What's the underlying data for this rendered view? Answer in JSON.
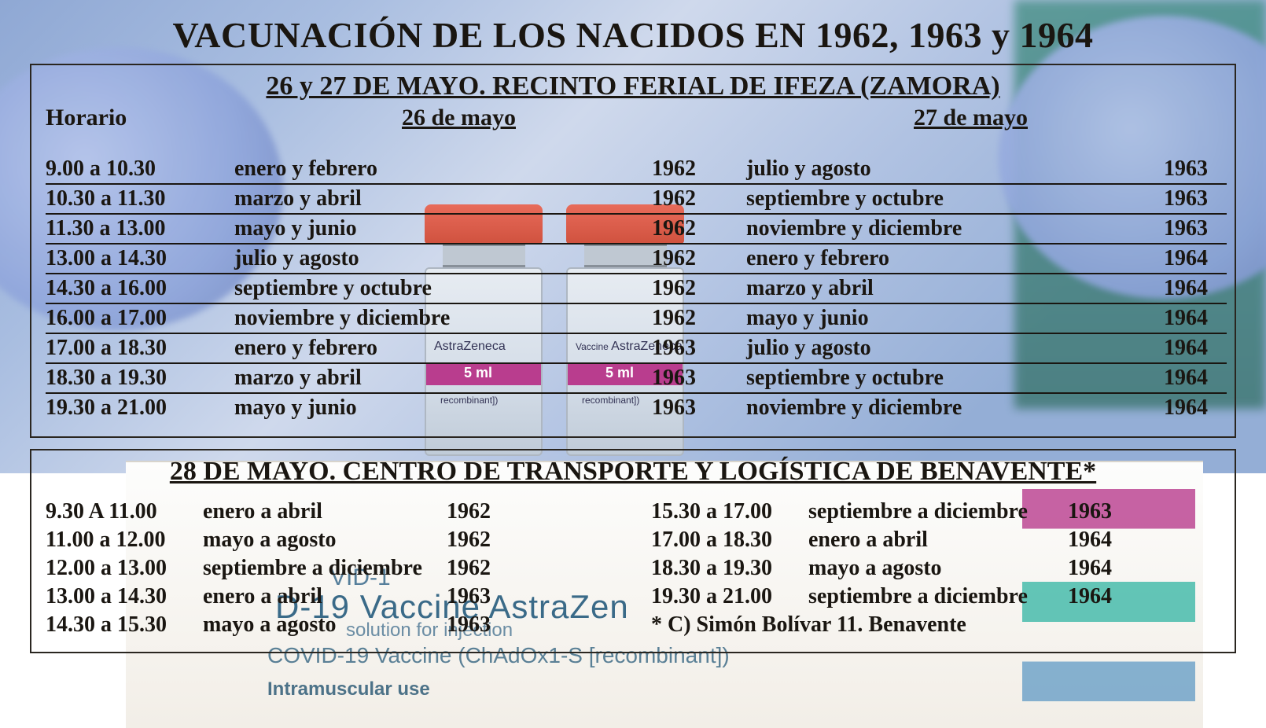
{
  "title": "VACUNACIÓN DE LOS NACIDOS EN 1962, 1963 y 1964",
  "panelA": {
    "subtitle": "26 y 27 DE MAYO. RECINTO FERIAL DE IFEZA (ZAMORA)",
    "headers": {
      "h0": "Horario",
      "h1": "26 de mayo",
      "h2": "27 de mayo"
    },
    "rows": [
      {
        "time": "9.00 a 10.30",
        "d1m": "enero y febrero",
        "d1y": "1962",
        "d2m": "julio y agosto",
        "d2y": "1963"
      },
      {
        "time": "10.30 a 11.30",
        "d1m": "marzo y abril",
        "d1y": "1962",
        "d2m": "septiembre y octubre",
        "d2y": "1963"
      },
      {
        "time": "11.30 a 13.00",
        "d1m": "mayo y junio",
        "d1y": "1962",
        "d2m": "noviembre y diciembre",
        "d2y": "1963"
      },
      {
        "time": "13.00 a 14.30",
        "d1m": "julio y agosto",
        "d1y": "1962",
        "d2m": "enero y febrero",
        "d2y": "1964"
      },
      {
        "time": "14.30 a 16.00",
        "d1m": "septiembre y octubre",
        "d1y": "1962",
        "d2m": "marzo y abril",
        "d2y": "1964"
      },
      {
        "time": "16.00 a 17.00",
        "d1m": "noviembre y diciembre",
        "d1y": "1962",
        "d2m": "mayo y junio",
        "d2y": "1964"
      },
      {
        "time": "17.00 a 18.30",
        "d1m": "enero y febrero",
        "d1y": "1963",
        "d2m": "julio y agosto",
        "d2y": "1964"
      },
      {
        "time": "18.30 a 19.30",
        "d1m": "marzo y abril",
        "d1y": "1963",
        "d2m": "septiembre y octubre",
        "d2y": "1964"
      },
      {
        "time": "19.30 a 21.00",
        "d1m": "mayo y junio",
        "d1y": "1963",
        "d2m": "noviembre y diciembre",
        "d2y": "1964"
      }
    ]
  },
  "panelB": {
    "subtitle": "28 DE MAYO. CENTRO DE TRANSPORTE Y LOGÍSTICA DE BENAVENTE*",
    "left": [
      {
        "time": "9.30 A 11.00",
        "mon": "enero a abril",
        "yr": "1962"
      },
      {
        "time": "11.00 a 12.00",
        "mon": "mayo a agosto",
        "yr": "1962"
      },
      {
        "time": "12.00 a 13.00",
        "mon": "septiembre a diciembre",
        "yr": "1962"
      },
      {
        "time": "13.00 a 14.30",
        "mon": "enero a abril",
        "yr": "1963"
      },
      {
        "time": "14.30 a 15.30",
        "mon": "mayo a agosto",
        "yr": "1963"
      }
    ],
    "right": [
      {
        "time": "15.30 a 17.00",
        "mon": "septiembre a diciembre",
        "yr": "1963"
      },
      {
        "time": "17.00 a 18.30",
        "mon": "enero a abril",
        "yr": "1964"
      },
      {
        "time": "18.30 a 19.30",
        "mon": "mayo a agosto",
        "yr": "1964"
      },
      {
        "time": "19.30 a 21.00",
        "mon": "septiembre a diciembre",
        "yr": "1964"
      }
    ],
    "note": "* C) Simón Bolívar 11. Benavente"
  },
  "bg_text": {
    "vd": "VID-1",
    "big": "D-19 Vaccine AstraZen",
    "sol": "solution for injection",
    "mid": "COVID-19 Vaccine (ChAdOx1-S [recombinant])",
    "small": "Intramuscular use",
    "az": "AstraZeneca",
    "ml": "5 ml",
    "recomb": "recombinant])"
  }
}
